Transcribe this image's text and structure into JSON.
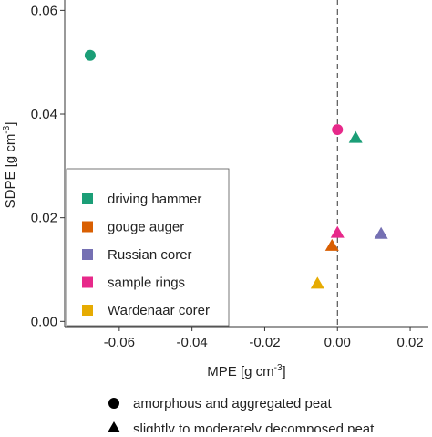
{
  "chart_data": {
    "type": "scatter",
    "title": "",
    "xlabel": "MPE [g cm",
    "xlabel_sup": "-3",
    "xlabel_end": "]",
    "ylabel": "SDPE [g cm",
    "ylabel_sup": "-3",
    "ylabel_end": "]",
    "xlim": [
      -0.075,
      0.025
    ],
    "ylim": [
      -0.001,
      0.062
    ],
    "x_ticks": [
      -0.06,
      -0.04,
      -0.02,
      0.0,
      0.02
    ],
    "x_tick_labels": [
      "-0.06",
      "-0.04",
      "-0.02",
      "0.00",
      "0.02"
    ],
    "y_ticks": [
      0.0,
      0.02,
      0.04,
      0.06
    ],
    "y_tick_labels": [
      "0.00",
      "0.02",
      "0.04",
      "0.06"
    ],
    "reference_line_x": 0.0,
    "grid": false,
    "legend_position": "bottom-left",
    "color_legend": [
      {
        "name": "driving hammer",
        "color": "#1b9e77"
      },
      {
        "name": "gouge auger",
        "color": "#d95f02"
      },
      {
        "name": "Russian corer",
        "color": "#7570b3"
      },
      {
        "name": "sample rings",
        "color": "#e7298a"
      },
      {
        "name": "Wardenaar corer",
        "color": "#e6ab02"
      }
    ],
    "shape_legend": [
      {
        "name": "amorphous and aggregated peat",
        "shape": "circle"
      },
      {
        "name": "slightly to moderately decomposed peat",
        "shape": "triangle"
      }
    ],
    "points": [
      {
        "method": "driving hammer",
        "peat": "amorphous and aggregated peat",
        "shape": "circle",
        "x": -0.068,
        "y": 0.0513
      },
      {
        "method": "sample rings",
        "peat": "amorphous and aggregated peat",
        "shape": "circle",
        "x": 0.0,
        "y": 0.037
      },
      {
        "method": "driving hammer",
        "peat": "slightly to moderately decomposed peat",
        "shape": "triangle",
        "x": 0.005,
        "y": 0.0353
      },
      {
        "method": "sample rings",
        "peat": "slightly to moderately decomposed peat",
        "shape": "triangle",
        "x": 0.0,
        "y": 0.017
      },
      {
        "method": "Russian corer",
        "peat": "slightly to moderately decomposed peat",
        "shape": "triangle",
        "x": 0.012,
        "y": 0.0168
      },
      {
        "method": "gouge auger",
        "peat": "slightly to moderately decomposed peat",
        "shape": "triangle",
        "x": -0.0015,
        "y": 0.0145
      },
      {
        "method": "Wardenaar corer",
        "peat": "slightly to moderately decomposed peat",
        "shape": "triangle",
        "x": -0.0055,
        "y": 0.0072
      }
    ]
  }
}
